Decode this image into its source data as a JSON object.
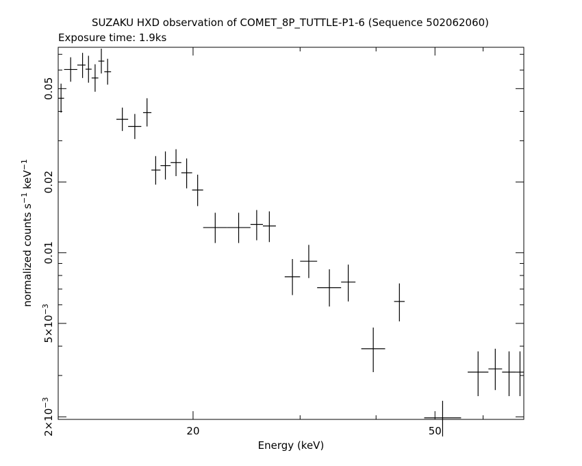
{
  "chart_data": {
    "type": "scatter",
    "title": "SUZAKU HXD observation of COMET_8P_TUTTLE-P1-6 (Sequence 502062060)",
    "subtitle": "Exposure time: 1.9ks",
    "xlabel": "Energy (keV)",
    "ylabel_prefix": "normalized counts s",
    "ylabel_exp1": "−1",
    "ylabel_mid": " keV",
    "ylabel_exp2": "−1",
    "x_scale": "log",
    "y_scale": "log",
    "xlim": [
      12.0,
      70.0
    ],
    "ylim": [
      0.00195,
      0.075
    ],
    "x_ticks": [
      {
        "value": 20,
        "label": "20"
      },
      {
        "value": 50,
        "label": "50"
      }
    ],
    "y_ticks": [
      {
        "value": 0.002,
        "label": "2×10",
        "exp": "−3"
      },
      {
        "value": 0.005,
        "label": "5×10",
        "exp": "−3"
      },
      {
        "value": 0.01,
        "label": "0.01",
        "exp": ""
      },
      {
        "value": 0.02,
        "label": "0.02",
        "exp": ""
      },
      {
        "value": 0.05,
        "label": "0.05",
        "exp": ""
      }
    ],
    "grid": false,
    "points": [
      {
        "x": 12.13,
        "xerr": [
          12.0,
          12.27
        ],
        "y": 0.0455,
        "yerr": [
          0.0395,
          0.0525
        ]
      },
      {
        "x": 12.58,
        "xerr": [
          12.27,
          12.9
        ],
        "y": 0.0603,
        "yerr": [
          0.0535,
          0.068
        ]
      },
      {
        "x": 13.16,
        "xerr": [
          12.9,
          13.31
        ],
        "y": 0.063,
        "yerr": [
          0.0555,
          0.071
        ]
      },
      {
        "x": 13.46,
        "xerr": [
          13.31,
          13.62
        ],
        "y": 0.0605,
        "yerr": [
          0.053,
          0.069
        ]
      },
      {
        "x": 13.8,
        "xerr": [
          13.62,
          13.97
        ],
        "y": 0.0555,
        "yerr": [
          0.0485,
          0.0635
        ]
      },
      {
        "x": 14.13,
        "xerr": [
          13.97,
          14.29
        ],
        "y": 0.0655,
        "yerr": [
          0.058,
          0.074
        ]
      },
      {
        "x": 14.47,
        "xerr": [
          14.29,
          14.66
        ],
        "y": 0.059,
        "yerr": [
          0.052,
          0.067
        ]
      },
      {
        "x": 15.3,
        "xerr": [
          14.96,
          15.64
        ],
        "y": 0.037,
        "yerr": [
          0.033,
          0.0415
        ]
      },
      {
        "x": 16.04,
        "xerr": [
          15.64,
          16.44
        ],
        "y": 0.0345,
        "yerr": [
          0.0305,
          0.039
        ]
      },
      {
        "x": 16.8,
        "xerr": [
          16.55,
          17.08
        ],
        "y": 0.0395,
        "yerr": [
          0.0345,
          0.0455
        ]
      },
      {
        "x": 17.36,
        "xerr": [
          17.08,
          17.68
        ],
        "y": 0.0225,
        "yerr": [
          0.0195,
          0.0258
        ]
      },
      {
        "x": 18.01,
        "xerr": [
          17.68,
          18.37
        ],
        "y": 0.0235,
        "yerr": [
          0.0205,
          0.027
        ]
      },
      {
        "x": 18.75,
        "xerr": [
          18.37,
          19.13
        ],
        "y": 0.0242,
        "yerr": [
          0.0212,
          0.0276
        ]
      },
      {
        "x": 19.52,
        "xerr": [
          19.13,
          19.93
        ],
        "y": 0.0219,
        "yerr": [
          0.0188,
          0.0252
        ]
      },
      {
        "x": 20.35,
        "xerr": [
          19.93,
          20.78
        ],
        "y": 0.0185,
        "yerr": [
          0.0158,
          0.0215
        ]
      },
      {
        "x": 21.75,
        "xerr": [
          20.78,
          22.72
        ],
        "y": 0.0128,
        "yerr": [
          0.011,
          0.0148
        ]
      },
      {
        "x": 23.77,
        "xerr": [
          22.72,
          24.86
        ],
        "y": 0.0128,
        "yerr": [
          0.011,
          0.0148
        ]
      },
      {
        "x": 25.45,
        "xerr": [
          24.86,
          26.06
        ],
        "y": 0.0132,
        "yerr": [
          0.0113,
          0.0152
        ]
      },
      {
        "x": 26.7,
        "xerr": [
          26.06,
          27.37
        ],
        "y": 0.013,
        "yerr": [
          0.0111,
          0.015
        ]
      },
      {
        "x": 29.14,
        "xerr": [
          28.3,
          30.0
        ],
        "y": 0.0079,
        "yerr": [
          0.0066,
          0.0094
        ]
      },
      {
        "x": 31.0,
        "xerr": [
          30.0,
          32.0
        ],
        "y": 0.0092,
        "yerr": [
          0.0078,
          0.0108
        ]
      },
      {
        "x": 33.52,
        "xerr": [
          32.0,
          35.04
        ],
        "y": 0.0071,
        "yerr": [
          0.0059,
          0.0085
        ]
      },
      {
        "x": 36.0,
        "xerr": [
          35.04,
          37.0
        ],
        "y": 0.0075,
        "yerr": [
          0.0062,
          0.0089
        ]
      },
      {
        "x": 39.58,
        "xerr": [
          37.82,
          41.4
        ],
        "y": 0.0039,
        "yerr": [
          0.0031,
          0.0048
        ]
      },
      {
        "x": 43.7,
        "xerr": [
          42.83,
          44.58
        ],
        "y": 0.0062,
        "yerr": [
          0.0051,
          0.0074
        ]
      },
      {
        "x": 51.47,
        "xerr": [
          48.0,
          55.2
        ],
        "y": 0.00198,
        "yerr": [
          0.00165,
          0.00234
        ]
      },
      {
        "x": 58.87,
        "xerr": [
          56.6,
          61.22
        ],
        "y": 0.0031,
        "yerr": [
          0.00245,
          0.0038
        ]
      },
      {
        "x": 62.83,
        "xerr": [
          61.22,
          64.48
        ],
        "y": 0.0032,
        "yerr": [
          0.0026,
          0.0039
        ]
      },
      {
        "x": 66.2,
        "xerr": [
          64.48,
          67.97
        ],
        "y": 0.0031,
        "yerr": [
          0.00245,
          0.0038
        ]
      },
      {
        "x": 69.0,
        "xerr": [
          67.97,
          70.0
        ],
        "y": 0.0031,
        "yerr": [
          0.00245,
          0.0038
        ]
      }
    ]
  }
}
